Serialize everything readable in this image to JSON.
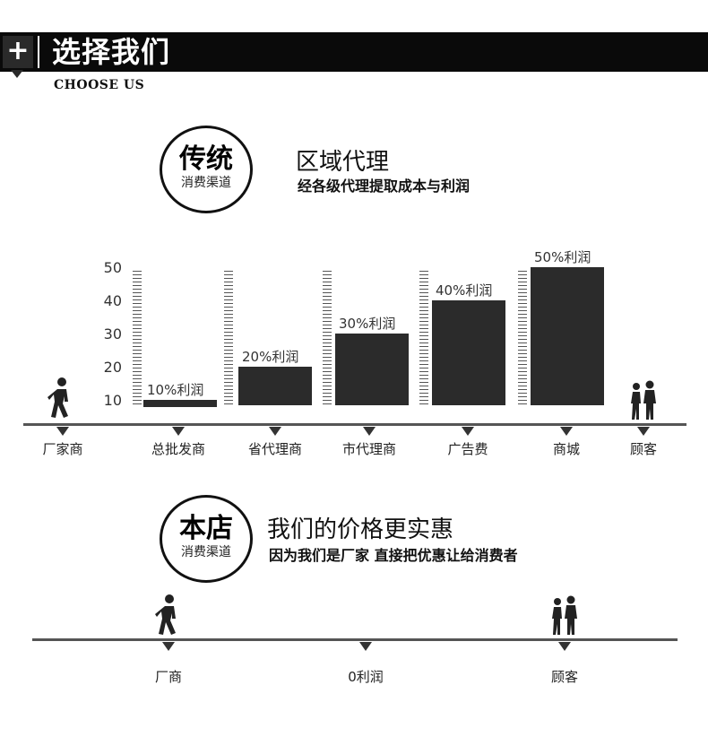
{
  "header": {
    "plus": "+",
    "title": "选择我们",
    "subtitle": "CHOOSE US"
  },
  "traditional": {
    "circle_big": "传统",
    "circle_small": "消费渠道",
    "heading": "区域代理",
    "subheading": "经各级代理提取成本与利润",
    "axis_ticks": [
      "50",
      "40",
      "30",
      "20",
      "10"
    ],
    "bars": [
      {
        "label": "10%利润",
        "value": 10
      },
      {
        "label": "20%利润",
        "value": 20
      },
      {
        "label": "30%利润",
        "value": 30
      },
      {
        "label": "40%利润",
        "value": 40
      },
      {
        "label": "50%利润",
        "value": 50
      }
    ],
    "stages": [
      "厂家商",
      "总批发商",
      "省代理商",
      "市代理商",
      "广告费",
      "商城",
      "顾客"
    ]
  },
  "store": {
    "circle_big": "本店",
    "circle_small": "消费渠道",
    "heading": "我们的价格更实惠",
    "subheading": "因为我们是厂家  直接把优惠让给消费者",
    "stages": [
      "厂商",
      "0利润",
      "顾客"
    ]
  },
  "icons": [
    "walking-person-icon",
    "people-pair-icon"
  ],
  "colors": {
    "bar": "#2b2b2b",
    "banner": "#0a0a0a"
  }
}
